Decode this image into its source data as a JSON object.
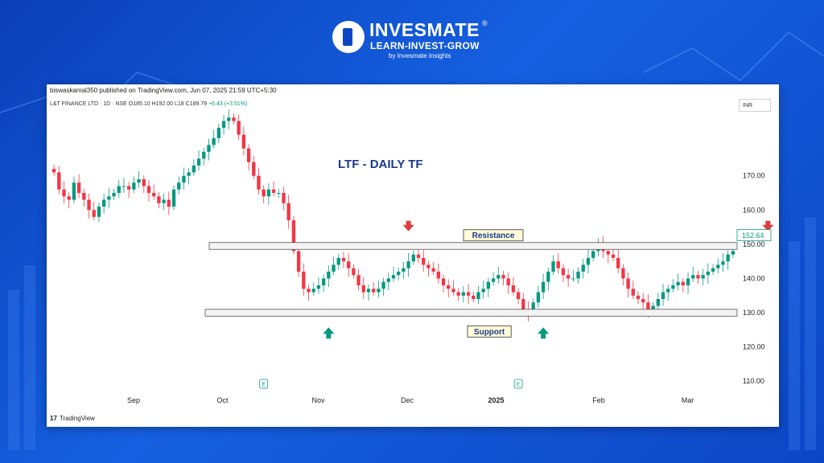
{
  "brand": {
    "name": "INVESMATE",
    "registered": "®",
    "tagline": "LEARN-INVEST-GROW",
    "byline": "by Invesmate Insights"
  },
  "header": {
    "published": "biswaskamal350 published on TradingView.com, Jun 07, 2025 21:59 UTC+5:30",
    "symbol": "L&T FINANCE LTD · 1D · NSE",
    "open": "O185.10",
    "high": "H192.00",
    "low": "L18",
    "close": "C189.79",
    "change": "+6.43 (+3.51%)"
  },
  "currency": "INR",
  "footer": {
    "brand": "TradingView"
  },
  "chart_data": {
    "type": "candlestick",
    "title": "LTF - DAILY TF",
    "ylim": [
      107,
      192
    ],
    "yticks": [
      "110.00",
      "120.00",
      "130.00",
      "140.00",
      "150.00",
      "160.00",
      "170.00"
    ],
    "xticks": [
      "Sep",
      "Oct",
      "Nov",
      "Dec",
      "2025",
      "Feb",
      "Mar"
    ],
    "last_price_label": "152.64",
    "zones": [
      {
        "label": "Resistance",
        "from": 148.5,
        "to": 150.5
      },
      {
        "label": "Support",
        "from": 129.0,
        "to": 131.0
      }
    ],
    "arrows": [
      {
        "dir": "down",
        "color": "#e03b3b",
        "x_index": 71
      },
      {
        "dir": "down",
        "color": "#e03b3b",
        "x_index": 143
      },
      {
        "dir": "up",
        "color": "#089981",
        "x_index": 55
      },
      {
        "dir": "up",
        "color": "#089981",
        "x_index": 98
      },
      {
        "dir": "up",
        "color": "#089981",
        "x_index": 164
      }
    ],
    "earnings_markers": [
      {
        "label": "E",
        "x_index": 42
      },
      {
        "label": "E",
        "x_index": 93
      }
    ],
    "closes": [
      171,
      166,
      164,
      163,
      168,
      165,
      163,
      160,
      158,
      161,
      163,
      164,
      165,
      167,
      167,
      166,
      168,
      169,
      167,
      165,
      164,
      162,
      163,
      161,
      166,
      168,
      170,
      171,
      173,
      175,
      177,
      179,
      181,
      184,
      186,
      187,
      186,
      182,
      178,
      174,
      170,
      166,
      164,
      166,
      165,
      165,
      162,
      157,
      148,
      142,
      137,
      136,
      137,
      138,
      140,
      142,
      144,
      146,
      145,
      143,
      141,
      138,
      136,
      137,
      136,
      137,
      139,
      140,
      141,
      142,
      143,
      145,
      147,
      146,
      144,
      143,
      142,
      140,
      138,
      137,
      136,
      135,
      136,
      135,
      134,
      136,
      137,
      139,
      140,
      141,
      140,
      138,
      136,
      134,
      131,
      130,
      133,
      136,
      139,
      142,
      145,
      143,
      141,
      140,
      140,
      142,
      144,
      146,
      148,
      150,
      148,
      147,
      146,
      143,
      140,
      137,
      135,
      134,
      133,
      131,
      132,
      134,
      136,
      137,
      138,
      139,
      138,
      140,
      141,
      140,
      141,
      142,
      143,
      144,
      145,
      147,
      148
    ]
  }
}
